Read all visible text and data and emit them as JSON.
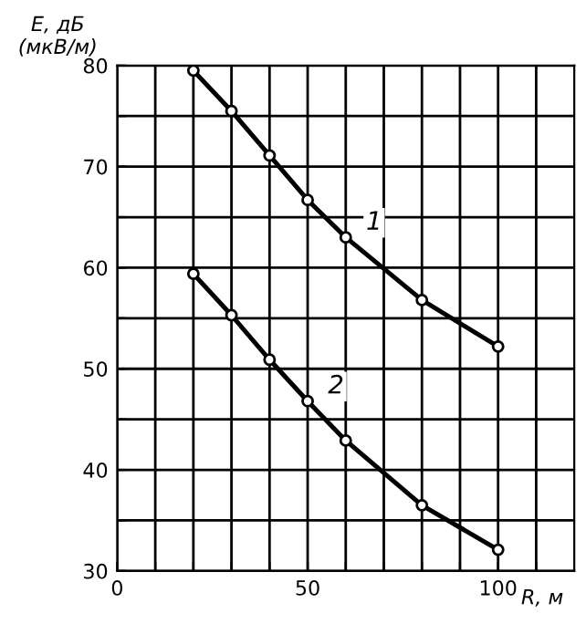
{
  "chart_data": {
    "type": "line",
    "ylabel": "E, дБ\n(мкВ/м)",
    "xlabel": "R, м",
    "x": [
      20,
      30,
      40,
      50,
      60,
      80,
      100
    ],
    "series": [
      {
        "color": "#000000",
        "values": [
          79.5,
          75.5,
          71.1,
          66.7,
          63.0,
          56.8,
          52.2
        ]
      },
      {
        "color": "#000000",
        "values": [
          59.4,
          55.3,
          50.9,
          46.8,
          42.9,
          36.5,
          32.1
        ]
      }
    ],
    "xlim": [
      0,
      120
    ],
    "ylim": [
      30,
      80
    ],
    "xticks": [
      0,
      {
        "value": 10,
        "label": null
      },
      {
        "value": 20,
        "label": null
      },
      {
        "value": 30,
        "label": null
      },
      {
        "value": 40,
        "label": null
      },
      50,
      {
        "value": 60,
        "label": null
      },
      {
        "value": 70,
        "label": null
      },
      {
        "value": 80,
        "label": null
      },
      {
        "value": 90,
        "label": null
      },
      100,
      {
        "value": 110,
        "label": null
      }
    ],
    "yticks": [
      30,
      {
        "value": 35,
        "label": null
      },
      40,
      {
        "value": 45,
        "label": null
      },
      50,
      {
        "value": 55,
        "label": null
      },
      60,
      {
        "value": 65,
        "label": null
      },
      70,
      {
        "value": 75,
        "label": null
      },
      80
    ],
    "grid": true,
    "marker": "circle",
    "line_style": "solid",
    "annotations": [
      {
        "text": "1",
        "x": 60,
        "y": 63.0
      },
      {
        "text": "2",
        "x": 50,
        "y": 46.8
      }
    ]
  }
}
